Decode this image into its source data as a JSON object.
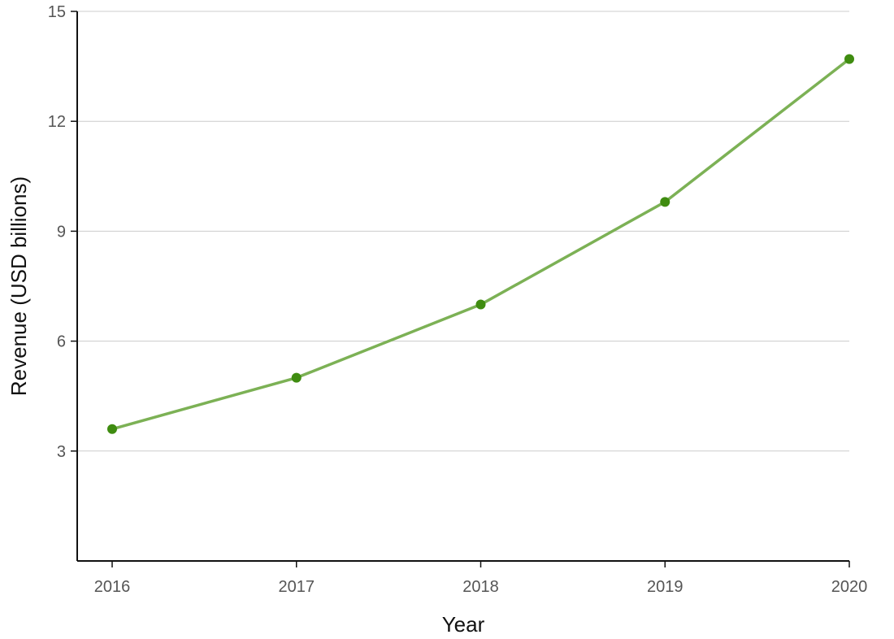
{
  "chart_data": {
    "type": "line",
    "title": "",
    "xlabel": "Year",
    "ylabel": "Revenue  (USD billions)",
    "x": [
      "2016",
      "2017",
      "2018",
      "2019",
      "2020"
    ],
    "series": [
      {
        "values": [
          3.6,
          5.0,
          7.0,
          9.8,
          13.7
        ],
        "color": "#7cb155",
        "marker_color": "#3f8c10"
      }
    ],
    "ylim": [
      0,
      15
    ],
    "yticks": [
      3,
      6,
      9,
      12,
      15
    ],
    "grid": "horizontal",
    "legend": "none"
  }
}
